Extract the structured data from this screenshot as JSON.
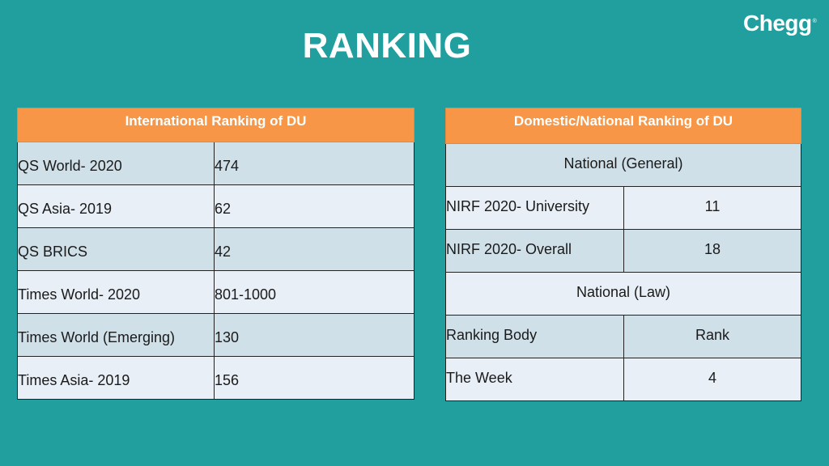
{
  "title": "RANKING",
  "brand": {
    "name": "Chegg",
    "mark": "®"
  },
  "international": {
    "header": "International Ranking of DU",
    "rows": [
      {
        "name": "QS World- 2020",
        "rank": "474"
      },
      {
        "name": "QS Asia- 2019",
        "rank": "62"
      },
      {
        "name": "QS BRICS",
        "rank": "42"
      },
      {
        "name": "Times World- 2020",
        "rank": "801-1000"
      },
      {
        "name": "Times World (Emerging)",
        "rank": "130"
      },
      {
        "name": "Times Asia- 2019",
        "rank": "156"
      }
    ]
  },
  "domestic": {
    "header": "Domestic/National Ranking of DU",
    "section_general": "National (General)",
    "nirf_university": {
      "name": "NIRF 2020- University",
      "rank": "11"
    },
    "nirf_overall": {
      "name": "NIRF 2020- Overall",
      "rank": "18"
    },
    "section_law": "National (Law)",
    "law_header": {
      "body": "Ranking Body",
      "rank": "Rank"
    },
    "the_week": {
      "name": "The Week",
      "rank": "4"
    }
  }
}
